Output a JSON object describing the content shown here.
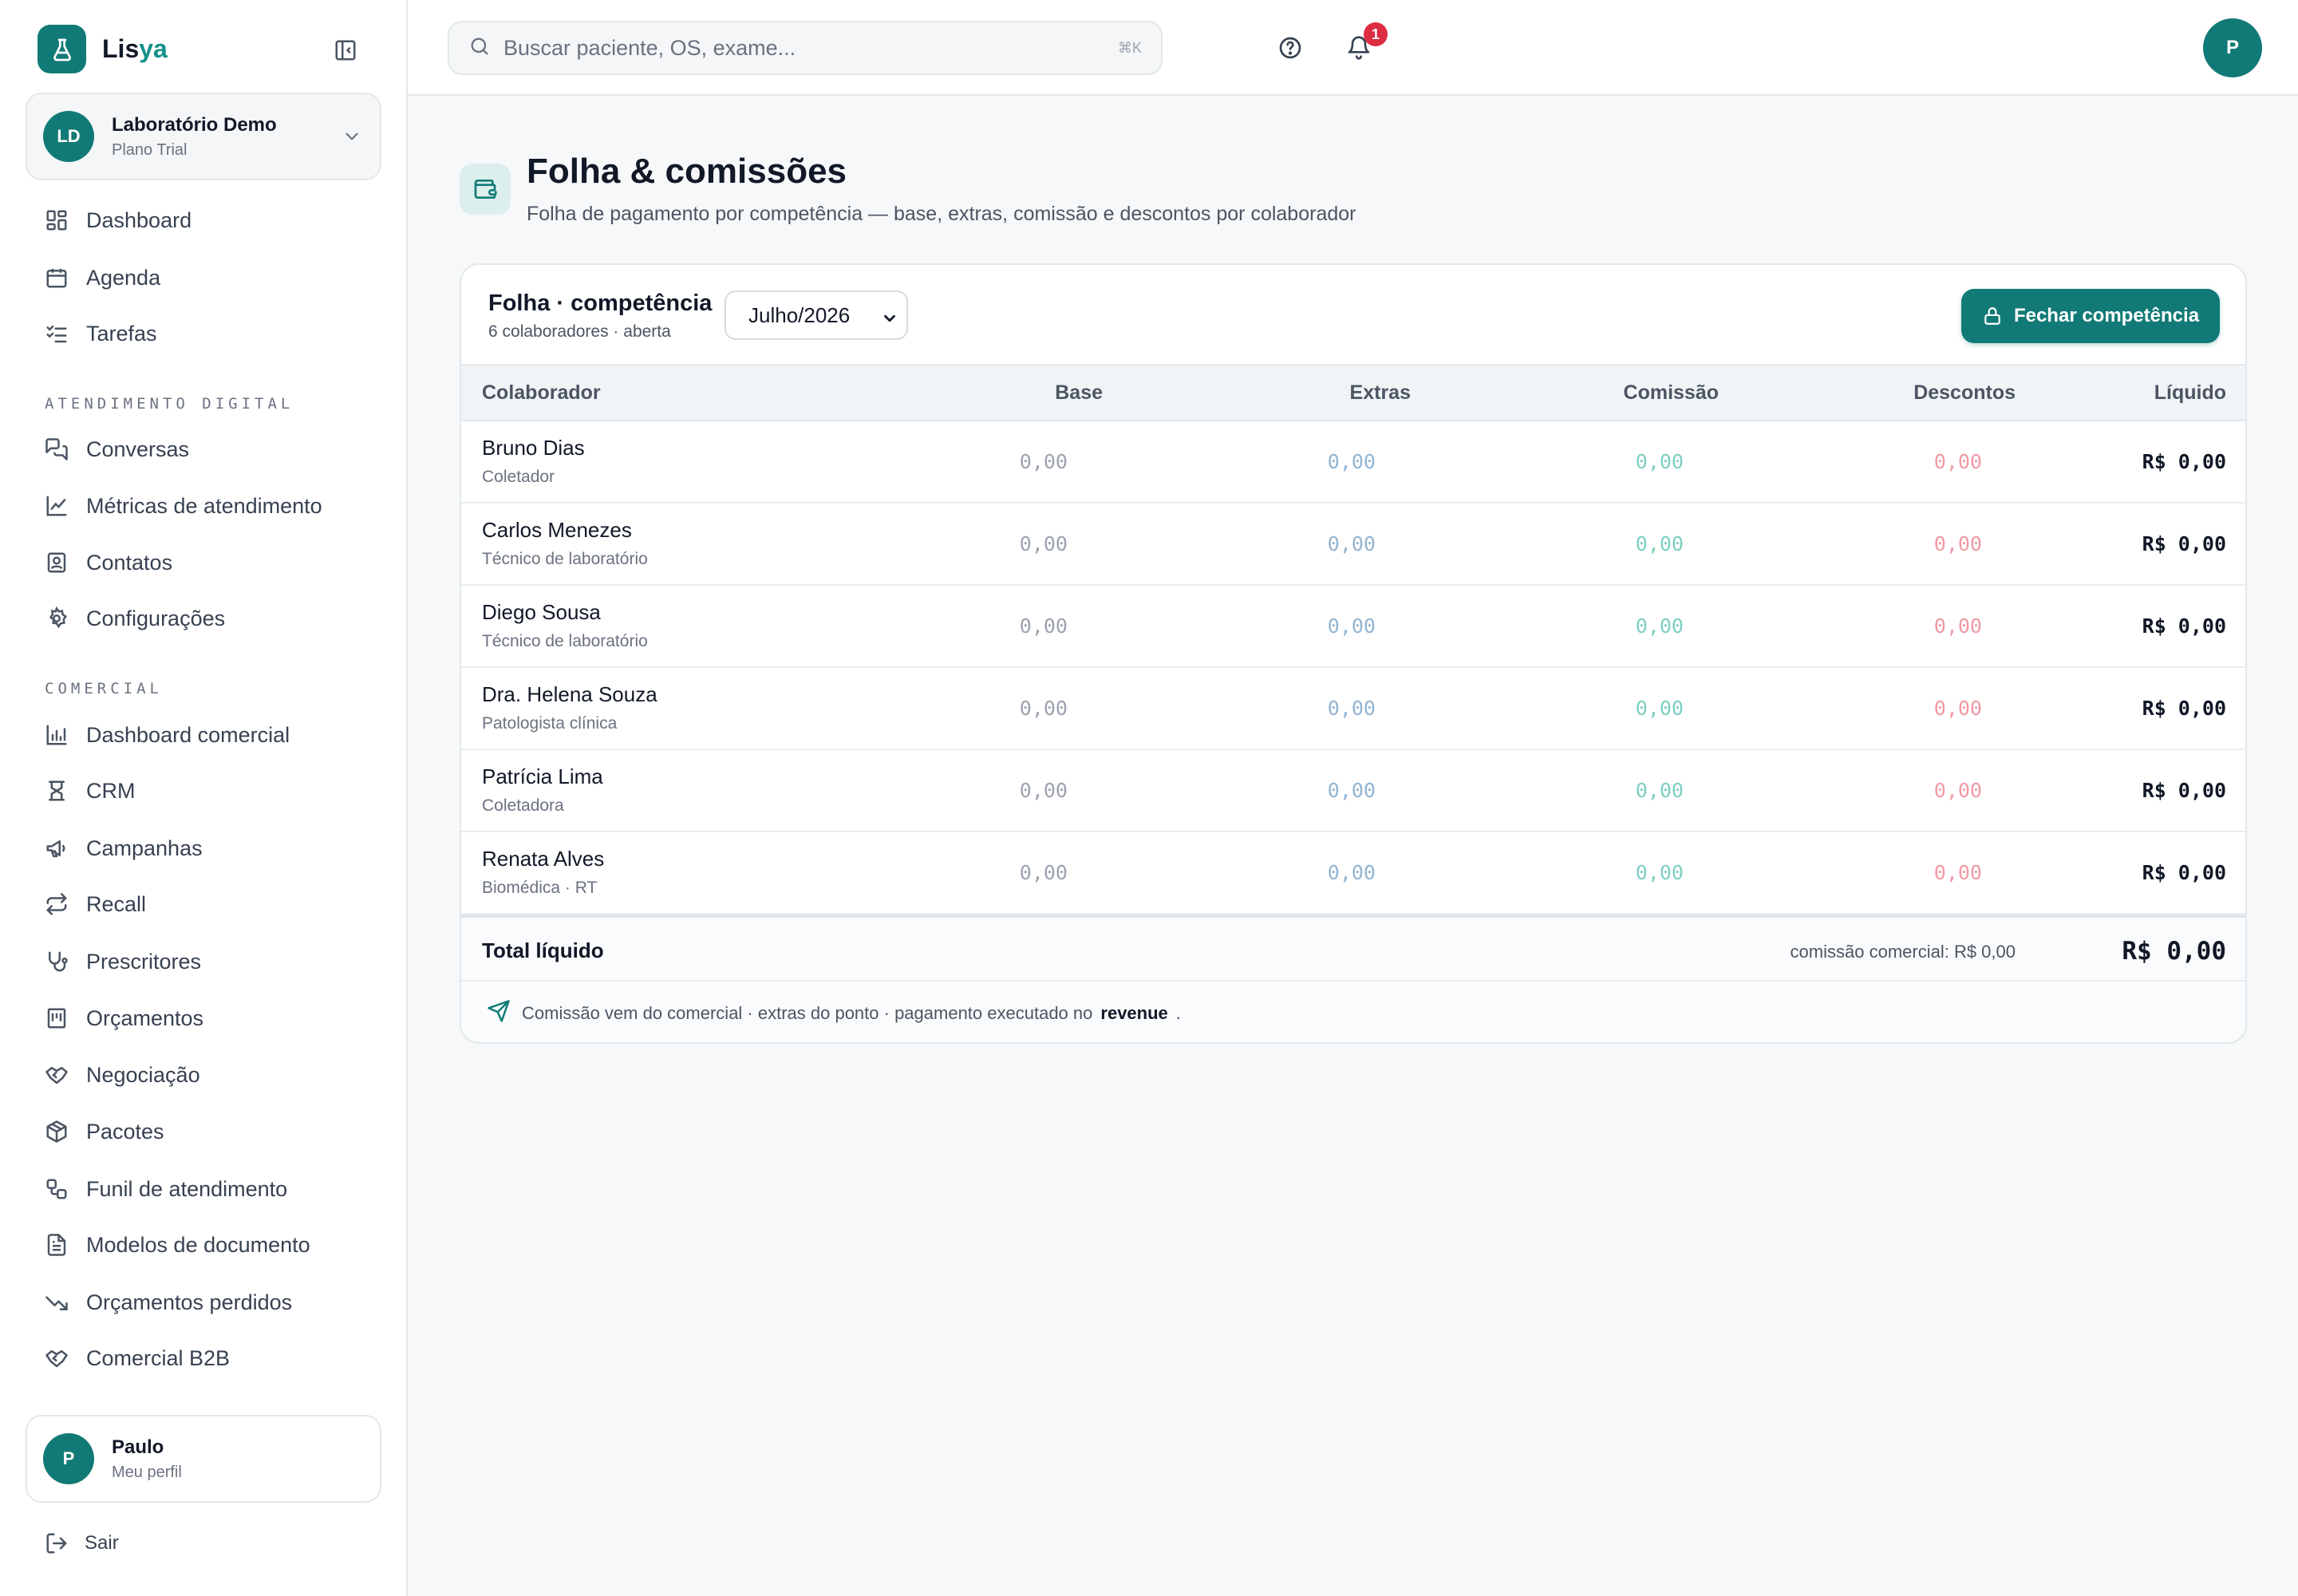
{
  "brand": {
    "name_part1": "Lis",
    "name_part2": "ya"
  },
  "org": {
    "initials": "LD",
    "name": "Laboratório Demo",
    "plan": "Plano Trial"
  },
  "nav": {
    "main": [
      {
        "label": "Dashboard",
        "icon": "dashboard-icon"
      },
      {
        "label": "Agenda",
        "icon": "calendar-icon"
      },
      {
        "label": "Tarefas",
        "icon": "checklist-icon"
      }
    ],
    "section_digital": "ATENDIMENTO DIGITAL",
    "digital": [
      {
        "label": "Conversas",
        "icon": "chat-icon"
      },
      {
        "label": "Métricas de atendimento",
        "icon": "line-chart-icon"
      },
      {
        "label": "Contatos",
        "icon": "contact-icon"
      },
      {
        "label": "Configurações",
        "icon": "gear-icon"
      }
    ],
    "section_comercial": "COMERCIAL",
    "comercial": [
      {
        "label": "Dashboard comercial",
        "icon": "bar-chart-icon"
      },
      {
        "label": "CRM",
        "icon": "crm-icon"
      },
      {
        "label": "Campanhas",
        "icon": "megaphone-icon"
      },
      {
        "label": "Recall",
        "icon": "repeat-icon"
      },
      {
        "label": "Prescritores",
        "icon": "stethoscope-icon"
      },
      {
        "label": "Orçamentos",
        "icon": "receipt-icon"
      },
      {
        "label": "Negociação",
        "icon": "handshake-icon"
      },
      {
        "label": "Pacotes",
        "icon": "package-icon"
      },
      {
        "label": "Funil de atendimento",
        "icon": "workflow-icon"
      },
      {
        "label": "Modelos de documento",
        "icon": "document-icon"
      },
      {
        "label": "Orçamentos perdidos",
        "icon": "trending-down-icon"
      },
      {
        "label": "Comercial B2B",
        "icon": "handshake-icon"
      }
    ]
  },
  "profile": {
    "initial": "P",
    "name": "Paulo",
    "link": "Meu perfil"
  },
  "logout_label": "Sair",
  "search": {
    "placeholder": "Buscar paciente, OS, exame...",
    "shortcut": "⌘K"
  },
  "header": {
    "notification_count": "1",
    "avatar_initial": "P"
  },
  "page": {
    "title": "Folha & comissões",
    "subtitle": "Folha de pagamento por competência — base, extras, comissão e descontos por colaborador"
  },
  "card": {
    "title": "Folha · competência",
    "subtitle": "6 colaboradores · aberta",
    "period_selected": "Julho/2026",
    "close_button": "Fechar competência"
  },
  "columns": {
    "colaborador": "Colaborador",
    "base": "Base",
    "extras": "Extras",
    "comissao": "Comissão",
    "descontos": "Descontos",
    "liquido": "Líquido"
  },
  "rows": [
    {
      "name": "Bruno Dias",
      "role": "Coletador",
      "base": "0,00",
      "extras": "0,00",
      "comissao": "0,00",
      "descontos": "0,00",
      "liquido": "R$ 0,00"
    },
    {
      "name": "Carlos Menezes",
      "role": "Técnico de laboratório",
      "base": "0,00",
      "extras": "0,00",
      "comissao": "0,00",
      "descontos": "0,00",
      "liquido": "R$ 0,00"
    },
    {
      "name": "Diego Sousa",
      "role": "Técnico de laboratório",
      "base": "0,00",
      "extras": "0,00",
      "comissao": "0,00",
      "descontos": "0,00",
      "liquido": "R$ 0,00"
    },
    {
      "name": "Dra. Helena Souza",
      "role": "Patologista clínica",
      "base": "0,00",
      "extras": "0,00",
      "comissao": "0,00",
      "descontos": "0,00",
      "liquido": "R$ 0,00"
    },
    {
      "name": "Patrícia Lima",
      "role": "Coletadora",
      "base": "0,00",
      "extras": "0,00",
      "comissao": "0,00",
      "descontos": "0,00",
      "liquido": "R$ 0,00"
    },
    {
      "name": "Renata Alves",
      "role": "Biomédica · RT",
      "base": "0,00",
      "extras": "0,00",
      "comissao": "0,00",
      "descontos": "0,00",
      "liquido": "R$ 0,00"
    }
  ],
  "total": {
    "label": "Total líquido",
    "commission_note": "comissão comercial: R$ 0,00",
    "value": "R$ 0,00"
  },
  "footer": {
    "text_before": "Comissão vem do comercial · extras do ponto · pagamento executado no",
    "bold": "revenue",
    "text_after": "."
  },
  "colors": {
    "primary": "#127a76",
    "accent": "#13908a",
    "badge": "#dc2d43"
  }
}
